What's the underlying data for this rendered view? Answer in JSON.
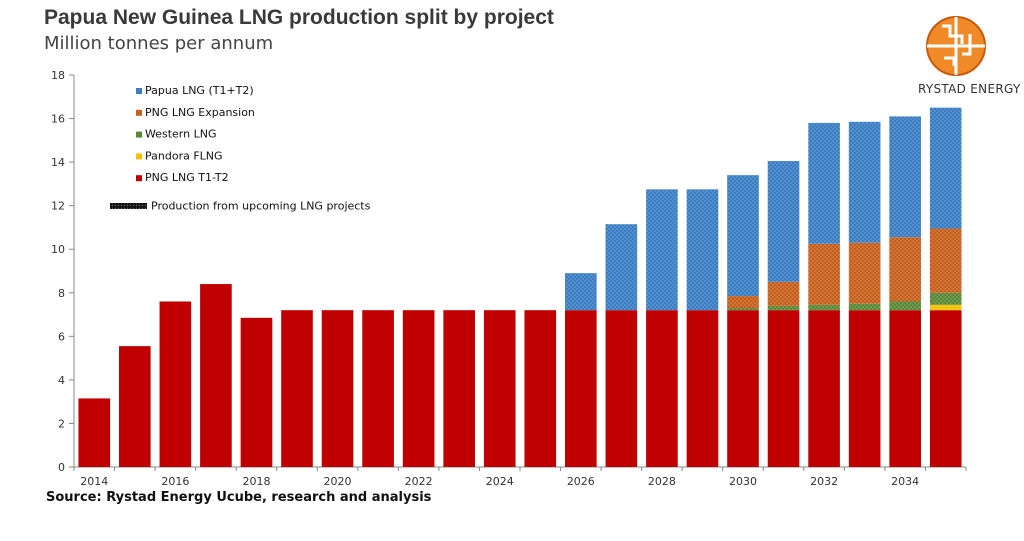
{
  "header": {
    "title": "Papua New Guinea LNG production split by project",
    "subtitle": "Million tonnes per annum"
  },
  "footer": {
    "source": "Source: Rystad Energy Ucube, research and analysis"
  },
  "brand": {
    "name": "RYSTAD ENERGY",
    "logo_icon": "rystad-energy-logo-icon"
  },
  "colors": {
    "papua_lng": "#3d7fc4",
    "png_expansion": "#c8611e",
    "western_lng": "#5a8a3a",
    "pandora_flng": "#f2c200",
    "png_t1t2": "#c00000",
    "axis": "#888888"
  },
  "chart_data": {
    "type": "bar",
    "stacked": true,
    "categories": [
      "2014",
      "2015",
      "2016",
      "2017",
      "2018",
      "2019",
      "2020",
      "2021",
      "2022",
      "2023",
      "2024",
      "2025",
      "2026",
      "2027",
      "2028",
      "2029",
      "2030",
      "2031",
      "2032",
      "2033",
      "2034",
      "2035"
    ],
    "xtick_labels": [
      "2014",
      "2016",
      "2018",
      "2020",
      "2022",
      "2024",
      "2026",
      "2028",
      "2030",
      "2032",
      "2034"
    ],
    "yticks": [
      0,
      2,
      4,
      6,
      8,
      10,
      12,
      14,
      16,
      18
    ],
    "ylim": [
      0,
      18
    ],
    "grid": false,
    "legend_position": "top-left",
    "series": [
      {
        "name": "PNG LNG T1-T2",
        "color_key": "png_t1t2",
        "values": [
          3.15,
          5.55,
          7.6,
          8.4,
          6.85,
          7.2,
          7.2,
          7.2,
          7.2,
          7.2,
          7.2,
          7.2,
          7.2,
          7.2,
          7.2,
          7.2,
          7.2,
          7.2,
          7.2,
          7.2,
          7.2,
          7.2
        ]
      },
      {
        "name": "Pandora FLNG",
        "color_key": "pandora_flng",
        "values": [
          0,
          0,
          0,
          0,
          0,
          0,
          0,
          0,
          0,
          0,
          0,
          0,
          0,
          0,
          0,
          0,
          0,
          0,
          0,
          0,
          0,
          0.25
        ]
      },
      {
        "name": "Western LNG",
        "color_key": "western_lng",
        "values": [
          0,
          0,
          0,
          0,
          0,
          0,
          0,
          0,
          0,
          0,
          0,
          0,
          0,
          0,
          0,
          0,
          0.1,
          0.2,
          0.25,
          0.3,
          0.4,
          0.55
        ]
      },
      {
        "name": "PNG LNG Expansion",
        "color_key": "png_expansion",
        "values": [
          0,
          0,
          0,
          0,
          0,
          0,
          0,
          0,
          0,
          0,
          0,
          0,
          0,
          0,
          0,
          0,
          0.55,
          1.1,
          2.8,
          2.8,
          2.95,
          2.95
        ]
      },
      {
        "name": "Papua LNG (T1+T2)",
        "color_key": "papua_lng",
        "values": [
          0,
          0,
          0,
          0,
          0,
          0,
          0,
          0,
          0,
          0,
          0,
          0,
          1.7,
          3.95,
          5.55,
          5.55,
          5.55,
          5.55,
          5.55,
          5.55,
          5.55,
          5.55
        ]
      }
    ],
    "upcoming_from_index": 12,
    "legend": [
      {
        "label": "Papua LNG (T1+T2)",
        "color_key": "papua_lng"
      },
      {
        "label": "PNG LNG Expansion",
        "color_key": "png_expansion"
      },
      {
        "label": "Western LNG",
        "color_key": "western_lng"
      },
      {
        "label": "Pandora FLNG",
        "color_key": "pandora_flng"
      },
      {
        "label": "PNG LNG T1-T2",
        "color_key": "png_t1t2"
      },
      {
        "label": "Production from upcoming LNG projects",
        "color_key": "dotted"
      }
    ]
  }
}
